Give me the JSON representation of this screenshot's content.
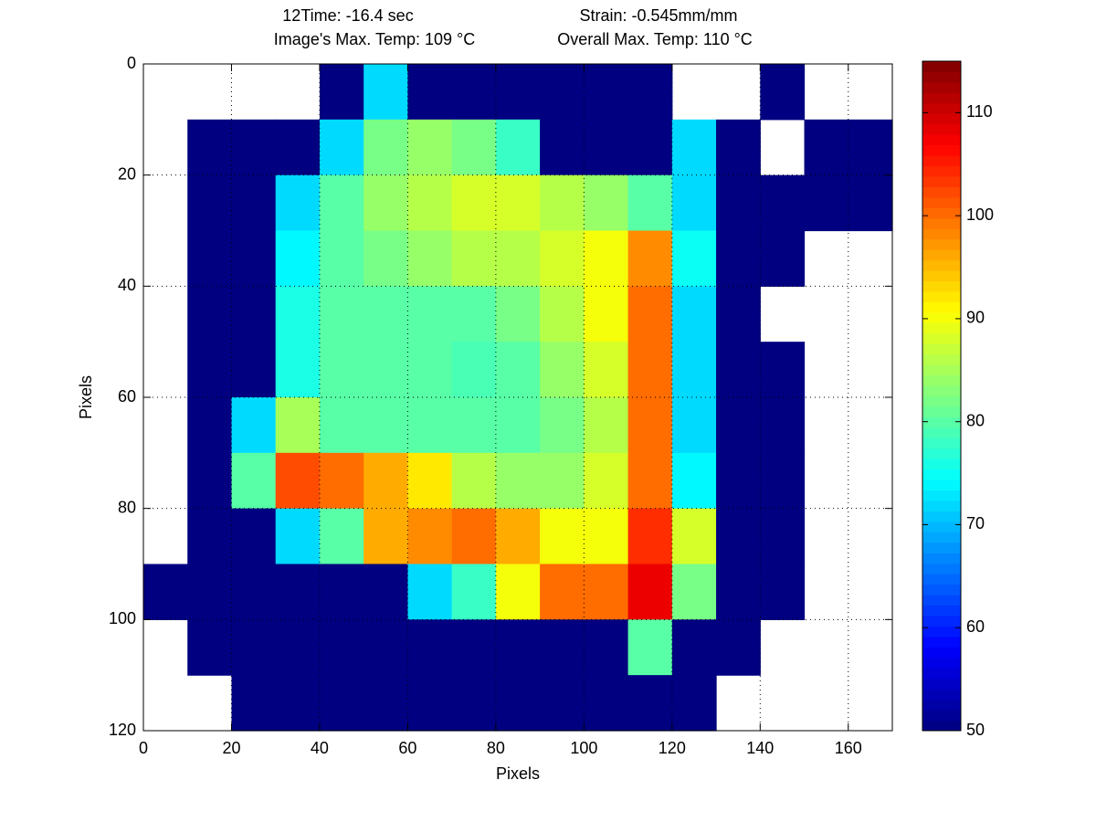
{
  "chart_data": {
    "type": "heatmap",
    "title_lines": [
      [
        "12Time: -16.4 sec",
        "Strain: -0.545mm/mm"
      ],
      [
        "Image's Max. Temp: 109 °C",
        "Overall Max. Temp: 110 °C"
      ]
    ],
    "xlabel": "Pixels",
    "ylabel": "Pixels",
    "xlim": [
      0,
      170
    ],
    "ylim": [
      0,
      120
    ],
    "y_reversed": true,
    "xticks": [
      0,
      20,
      40,
      60,
      80,
      100,
      120,
      140,
      160
    ],
    "yticks": [
      0,
      20,
      40,
      60,
      80,
      100,
      120
    ],
    "grid": true,
    "colormap": "jet",
    "clim": [
      50,
      115
    ],
    "colorbar_ticks": [
      50,
      60,
      70,
      80,
      90,
      100,
      110
    ],
    "x": [
      5,
      15,
      25,
      35,
      45,
      55,
      65,
      75,
      85,
      95,
      105,
      115,
      125,
      135,
      145,
      155,
      165
    ],
    "y": [
      5,
      15,
      25,
      35,
      45,
      55,
      65,
      75,
      85,
      95,
      105,
      115
    ],
    "z": [
      [
        null,
        null,
        null,
        null,
        50,
        72,
        50,
        50,
        50,
        50,
        50,
        50,
        null,
        null,
        50,
        null,
        null
      ],
      [
        null,
        50,
        50,
        50,
        72,
        82,
        84,
        82,
        78,
        50,
        50,
        50,
        72,
        50,
        null,
        50,
        50
      ],
      [
        null,
        50,
        50,
        72,
        80,
        84,
        86,
        88,
        88,
        86,
        84,
        80,
        72,
        50,
        50,
        50,
        50
      ],
      [
        null,
        50,
        50,
        74,
        80,
        82,
        84,
        86,
        86,
        88,
        90,
        98,
        75,
        50,
        50,
        null,
        null
      ],
      [
        null,
        50,
        50,
        76,
        80,
        80,
        80,
        80,
        82,
        86,
        90,
        100,
        72,
        50,
        null,
        null,
        null
      ],
      [
        null,
        50,
        50,
        76,
        80,
        80,
        80,
        79,
        80,
        84,
        88,
        100,
        72,
        50,
        50,
        null,
        null
      ],
      [
        null,
        50,
        72,
        85,
        80,
        80,
        80,
        80,
        80,
        82,
        86,
        100,
        72,
        50,
        50,
        null,
        null
      ],
      [
        null,
        50,
        80,
        102,
        100,
        96,
        92,
        86,
        84,
        84,
        88,
        100,
        74,
        50,
        50,
        null,
        null
      ],
      [
        null,
        50,
        50,
        72,
        80,
        96,
        98,
        100,
        96,
        90,
        90,
        104,
        88,
        50,
        50,
        null,
        null
      ],
      [
        50,
        50,
        50,
        50,
        50,
        50,
        72,
        78,
        90,
        100,
        100,
        108,
        82,
        50,
        50,
        null,
        null
      ],
      [
        null,
        50,
        50,
        50,
        50,
        50,
        50,
        50,
        50,
        50,
        50,
        80,
        50,
        50,
        null,
        null,
        null
      ],
      [
        null,
        null,
        50,
        50,
        50,
        50,
        50,
        50,
        50,
        50,
        50,
        50,
        50,
        null,
        null,
        null,
        null
      ]
    ]
  }
}
